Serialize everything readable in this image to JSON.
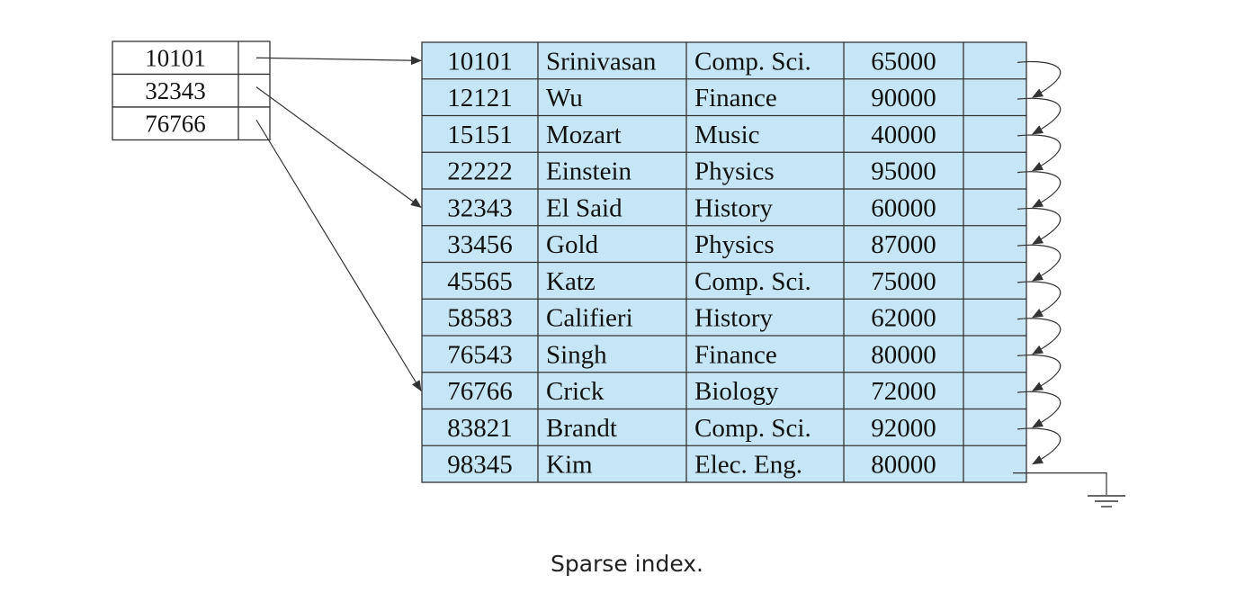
{
  "index": {
    "entries": [
      "10101",
      "32343",
      "76766"
    ]
  },
  "file": {
    "records": [
      [
        "10101",
        "Srinivasan",
        "Comp. Sci.",
        "65000"
      ],
      [
        "12121",
        "Wu",
        "Finance",
        "90000"
      ],
      [
        "15151",
        "Mozart",
        "Music",
        "40000"
      ],
      [
        "22222",
        "Einstein",
        "Physics",
        "95000"
      ],
      [
        "32343",
        "El Said",
        "History",
        "60000"
      ],
      [
        "33456",
        "Gold",
        "Physics",
        "87000"
      ],
      [
        "45565",
        "Katz",
        "Comp. Sci.",
        "75000"
      ],
      [
        "58583",
        "Califieri",
        "History",
        "62000"
      ],
      [
        "76543",
        "Singh",
        "Finance",
        "80000"
      ],
      [
        "76766",
        "Crick",
        "Biology",
        "72000"
      ],
      [
        "83821",
        "Brandt",
        "Comp. Sci.",
        "92000"
      ],
      [
        "98345",
        "Kim",
        "Elec. Eng.",
        "80000"
      ]
    ]
  },
  "caption": "Sparse index.",
  "colors": {
    "record_fill": "#c6e6f5",
    "stroke": "#333333"
  }
}
